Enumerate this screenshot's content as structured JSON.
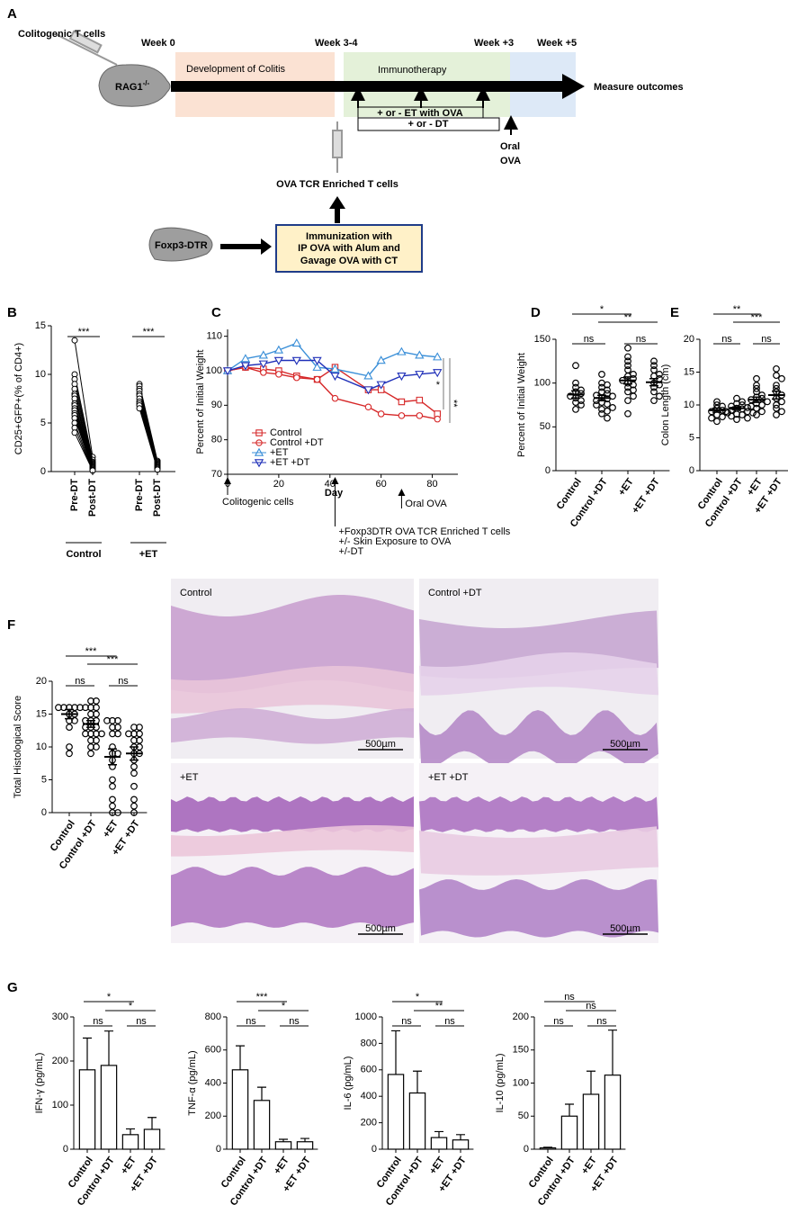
{
  "panel_labels": [
    "A",
    "B",
    "C",
    "D",
    "E",
    "F",
    "G"
  ],
  "diagram": {
    "donor_cells": "Colitogenic T cells",
    "host": {
      "label": "RAG1",
      "superscript": "-/-"
    },
    "weeks": [
      "Week 0",
      "Week 3-4",
      "Week +3",
      "Week +5"
    ],
    "phases": [
      "Development of Colitis",
      "Immunotherapy"
    ],
    "outcome": "Measure outcomes",
    "treatments": [
      "+ or - ET with OVA",
      "+ or - DT"
    ],
    "oral": [
      "Oral",
      "OVA"
    ],
    "enriched": "OVA TCR Enriched T cells",
    "donor_mouse": "Foxp3-DTR",
    "immunization": [
      "Immunization with",
      "IP OVA with Alum and",
      "Gavage OVA with CT"
    ]
  },
  "chart_data": [
    {
      "type": "paired",
      "ylabel": "CD25+GFP+(% of CD4+)",
      "ylim": [
        0,
        15
      ],
      "yticks": [
        0,
        5,
        10,
        15
      ],
      "color": "#000000",
      "groups": [
        {
          "name": "Control",
          "categories": [
            "Pre-DT",
            "Post-DT"
          ],
          "significance": "***",
          "pre": [
            13.5,
            10,
            9.5,
            9,
            8.5,
            8,
            7.8,
            7.5,
            7,
            7,
            6.8,
            6.5,
            6.3,
            6,
            5.8,
            5.5,
            5,
            4.5,
            4
          ],
          "post": [
            1.5,
            1.2,
            1,
            0.9,
            0.8,
            0.7,
            0.6,
            0.5,
            0.5,
            0.4,
            0.4,
            0.3,
            0.3,
            0.2,
            0.2,
            0.2,
            0.1,
            0.1,
            0.1
          ]
        },
        {
          "name": "+ET",
          "categories": [
            "Pre-DT",
            "Post-DT"
          ],
          "significance": "***",
          "pre": [
            9,
            8.8,
            8.5,
            8.3,
            8,
            7.8,
            7.5,
            7.2,
            7,
            6.8,
            6.5
          ],
          "post": [
            1.1,
            1,
            0.9,
            0.8,
            0.7,
            0.6,
            0.5,
            0.4,
            0.4,
            0.3,
            0.2
          ]
        }
      ]
    },
    {
      "type": "line",
      "ylabel": "Percent of Initial Weight",
      "xlabel": "Day",
      "xlim": [
        0,
        90
      ],
      "xticks": [
        0,
        20,
        40,
        60,
        80
      ],
      "ylim": [
        70,
        112
      ],
      "yticks": [
        70,
        80,
        90,
        100,
        110
      ],
      "x": [
        0,
        7,
        14,
        20,
        27,
        35,
        42,
        55,
        60,
        68,
        75,
        82
      ],
      "series": [
        {
          "name": "Control",
          "color": "#d62728",
          "marker": "square",
          "values": [
            100,
            101,
            100.5,
            100,
            98.5,
            97.5,
            101,
            94.5,
            94.5,
            91,
            91.5,
            87.5
          ]
        },
        {
          "name": "Control +DT",
          "color": "#d62728",
          "marker": "circle",
          "values": [
            100,
            101,
            99.5,
            99,
            98,
            97.5,
            92,
            89.5,
            87.5,
            87,
            87,
            86
          ]
        },
        {
          "name": "+ET",
          "color": "#3a8fd8",
          "marker": "triangle",
          "values": [
            100,
            103.5,
            104.5,
            106,
            108,
            101,
            100.5,
            98.5,
            103,
            105.5,
            104.5,
            104
          ]
        },
        {
          "name": "+ET +DT",
          "color": "#1f2fb8",
          "marker": "down-triangle",
          "values": [
            100,
            101.5,
            102,
            103,
            103,
            103,
            98.5,
            94.5,
            96,
            98.5,
            99,
            99.5
          ]
        }
      ],
      "annotations": [
        {
          "x": 0,
          "text": [
            "Colitogenic cells"
          ]
        },
        {
          "x": 42,
          "text": [
            "+Foxp3DTR OVA TCR Enriched T cells",
            "+/- Skin Exposure to OVA",
            "+/-DT"
          ]
        },
        {
          "x": 68,
          "text": [
            "Oral OVA"
          ]
        }
      ],
      "significance": [
        "*",
        "**"
      ]
    },
    {
      "type": "dot",
      "ylabel": "Percent of Initial Weight",
      "ylim": [
        0,
        150
      ],
      "yticks": [
        0,
        50,
        100,
        150
      ],
      "color": "#000000",
      "categories": [
        "Control",
        "Control +DT",
        "+ET",
        "+ET +DT"
      ],
      "points": [
        [
          120,
          100,
          95,
          92,
          90,
          88,
          85,
          83,
          80,
          78,
          75,
          70
        ],
        [
          110,
          100,
          98,
          95,
          92,
          90,
          88,
          86,
          85,
          83,
          82,
          80,
          78,
          76,
          75,
          72,
          70,
          68,
          65,
          60
        ],
        [
          140,
          130,
          125,
          120,
          115,
          110,
          108,
          105,
          103,
          100,
          98,
          95,
          92,
          90,
          85,
          80,
          65
        ],
        [
          125,
          120,
          115,
          110,
          108,
          105,
          100,
          98,
          95,
          90,
          85,
          80
        ]
      ],
      "mean": [
        87,
        83,
        103,
        101
      ],
      "sem": [
        4,
        3,
        4,
        4
      ],
      "significance": {
        "pairs": [
          "ns",
          "ns"
        ],
        "cross": [
          "*",
          "**"
        ]
      }
    },
    {
      "type": "dot",
      "ylabel": "Colon Length (cm)",
      "ylim": [
        0,
        20
      ],
      "yticks": [
        0,
        5,
        10,
        15,
        20
      ],
      "color": "#000000",
      "categories": [
        "Control",
        "Control +DT",
        "+ET",
        "+ET +DT"
      ],
      "points": [
        [
          10.5,
          10,
          9.8,
          9.5,
          9.2,
          9,
          8.8,
          8.5,
          8.2,
          8,
          7.5
        ],
        [
          11,
          10.5,
          10.2,
          10,
          9.8,
          9.6,
          9.5,
          9.4,
          9.2,
          9,
          9,
          8.8,
          8.6,
          8.5,
          8.3,
          8,
          7.8
        ],
        [
          14,
          13,
          12.5,
          12,
          11.5,
          11.2,
          11,
          10.8,
          10.5,
          10.2,
          10,
          9.8,
          9.5,
          9,
          8.5
        ],
        [
          15.5,
          14.5,
          14,
          13,
          12.5,
          12,
          11.5,
          11,
          10.5,
          10,
          9.5,
          9,
          8.5
        ]
      ],
      "mean": [
        9.2,
        9.5,
        10.8,
        11.5
      ],
      "sem": [
        0.3,
        0.2,
        0.4,
        0.6
      ],
      "significance": {
        "pairs": [
          "ns",
          "ns"
        ],
        "cross": [
          "**",
          "***"
        ]
      }
    },
    {
      "type": "dot",
      "ylabel": "Total Histological Score",
      "ylim": [
        0,
        20
      ],
      "yticks": [
        0,
        5,
        10,
        15,
        20
      ],
      "color": "#000000",
      "categories": [
        "Control",
        "Control +DT",
        "+ET",
        "+ET +DT"
      ],
      "points": [
        [
          16,
          16,
          16,
          16,
          16,
          15,
          15,
          14,
          14,
          13,
          10,
          9
        ],
        [
          17,
          17,
          16,
          16,
          16,
          15,
          15,
          14,
          14,
          14,
          13,
          13,
          13,
          12,
          12,
          12,
          12,
          11,
          11,
          10,
          10,
          9
        ],
        [
          14,
          14,
          14,
          13,
          13,
          12,
          12,
          10,
          9,
          9,
          8,
          7,
          5,
          4,
          2,
          1,
          0,
          0
        ],
        [
          13,
          13,
          12,
          12,
          12,
          11,
          11,
          10,
          10,
          9,
          9,
          8,
          7,
          6,
          4,
          2,
          1,
          0
        ]
      ],
      "mean": [
        15,
        13.5,
        8.5,
        9
      ],
      "sem": [
        0.7,
        0.5,
        1.2,
        1
      ],
      "significance": {
        "pairs": [
          "ns",
          "ns"
        ],
        "cross": [
          "***",
          "***"
        ]
      }
    },
    {
      "type": "bar",
      "ylabel": "IFN-γ (pg/mL)",
      "ylim": [
        0,
        300
      ],
      "yticks": [
        0,
        100,
        200,
        300
      ],
      "color": "#ffffff",
      "categories": [
        "Control",
        "Control +DT",
        "+ET",
        "+ET +DT"
      ],
      "values": [
        180,
        190,
        33,
        45
      ],
      "errors": [
        72,
        78,
        13,
        27
      ],
      "significance": {
        "pairs": [
          "ns",
          "ns"
        ],
        "cross": [
          "*",
          "*"
        ]
      }
    },
    {
      "type": "bar",
      "ylabel": "TNF-α (pg/mL)",
      "ylim": [
        0,
        800
      ],
      "yticks": [
        0,
        200,
        400,
        600,
        800
      ],
      "color": "#ffffff",
      "categories": [
        "Control",
        "Control +DT",
        "+ET",
        "+ET +DT"
      ],
      "values": [
        480,
        295,
        45,
        45
      ],
      "errors": [
        145,
        80,
        15,
        20
      ],
      "significance": {
        "pairs": [
          "ns",
          "ns"
        ],
        "cross": [
          "***",
          "*"
        ]
      }
    },
    {
      "type": "bar",
      "ylabel": "IL-6 (pg/mL)",
      "ylim": [
        0,
        1000
      ],
      "yticks": [
        0,
        200,
        400,
        600,
        800,
        1000
      ],
      "color": "#ffffff",
      "categories": [
        "Control",
        "Control +DT",
        "+ET",
        "+ET +DT"
      ],
      "values": [
        565,
        425,
        88,
        70
      ],
      "errors": [
        330,
        165,
        45,
        40
      ],
      "significance": {
        "pairs": [
          "ns",
          "ns"
        ],
        "cross": [
          "*",
          "**"
        ]
      }
    },
    {
      "type": "bar",
      "ylabel": "IL-10 (pg/mL)",
      "ylim": [
        0,
        200
      ],
      "yticks": [
        0,
        50,
        100,
        150,
        200
      ],
      "color": "#ffffff",
      "categories": [
        "Control",
        "Control +DT",
        "+ET",
        "+ET +DT"
      ],
      "values": [
        2,
        50,
        83,
        112
      ],
      "errors": [
        1,
        18,
        35,
        68
      ],
      "significance": {
        "pairs": [
          "ns",
          "ns"
        ],
        "cross": [
          "ns",
          "ns"
        ]
      }
    }
  ],
  "histology": {
    "labels": [
      "Control",
      "Control +DT",
      "+ET",
      "+ET +DT"
    ],
    "scale_bar": "500µm"
  }
}
